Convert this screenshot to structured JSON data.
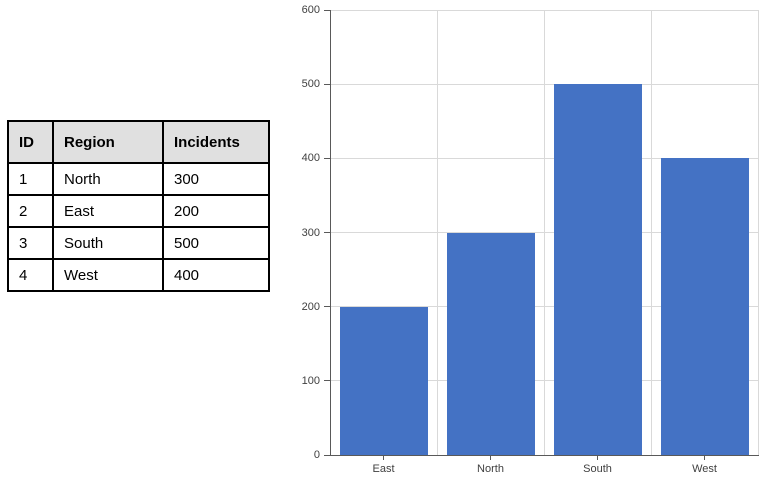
{
  "table": {
    "columns": [
      "ID",
      "Region",
      "Incidents"
    ],
    "rows": [
      [
        "1",
        "North",
        "300"
      ],
      [
        "2",
        "East",
        "200"
      ],
      [
        "3",
        "South",
        "500"
      ],
      [
        "4",
        "West",
        "400"
      ]
    ]
  },
  "chart_data": {
    "type": "bar",
    "categories": [
      "East",
      "North",
      "South",
      "West"
    ],
    "values": [
      200,
      300,
      500,
      400
    ],
    "title": "",
    "xlabel": "",
    "ylabel": "",
    "ylim": [
      0,
      600
    ],
    "ytick_interval": 100,
    "ytick_labels": [
      "0",
      "100",
      "200",
      "300",
      "400",
      "500",
      "600"
    ],
    "grid": true,
    "legend": false,
    "bar_color": "#4472C4",
    "gridline_color": "#D9D9D9",
    "axis_color": "#595959",
    "label_color": "#404040"
  },
  "colors": {
    "background": "#FFFFFF",
    "table_border": "#000000",
    "table_header_bg": "#E0E0E0",
    "table_text": "#000000"
  }
}
